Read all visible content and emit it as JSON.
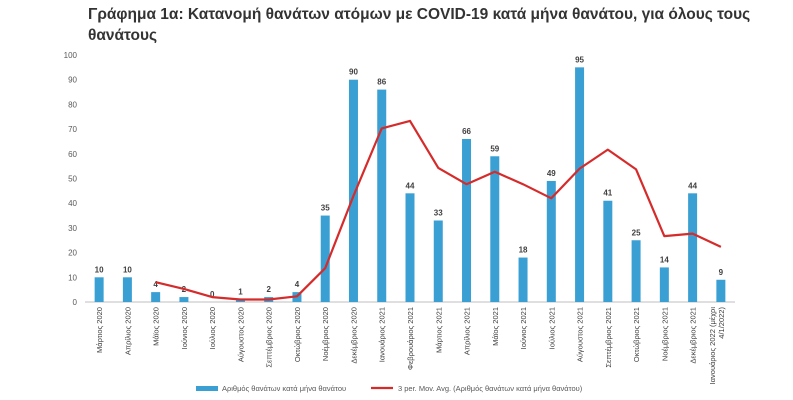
{
  "chart_data": {
    "type": "bar",
    "title": "Γράφημα 1α: Κατανομή θανάτων ατόμων με COVID-19 κατά μήνα θανάτου, για όλους τους θανάτους",
    "categories": [
      "Μάρτιος 2020",
      "Απρίλιος 2020",
      "Μάϊος 2020",
      "Ιούνιος 2020",
      "Ιούλιος 2020",
      "Αύγουστος 2020",
      "Σεπτέμβριος 2020",
      "Οκτώβριος 2020",
      "Νοέμβριος 2020",
      "Δεκέμβριος 2020",
      "Ιανουάριος 2021",
      "Φεβρουάριος 2021",
      "Μάρτιος 2021",
      "Απρίλιος 2021",
      "Μάϊος 2021",
      "Ιούνιος 2021",
      "Ιούλιος 2021",
      "Αύγουστος 2021",
      "Σεπτέμβριος 2021",
      "Οκτώβριος 2021",
      "Νοέμβριος 2021",
      "Δεκέμβριος 2021",
      "Ιανουάριος 2022 (μέχρι 4/1/2022)"
    ],
    "series": [
      {
        "name": "Αριθμός θανάτων κατά μήνα θανάτου",
        "type": "bar",
        "color": "#3aa0d4",
        "values": [
          10,
          10,
          4,
          2,
          0,
          1,
          2,
          4,
          35,
          90,
          86,
          44,
          33,
          66,
          59,
          18,
          49,
          95,
          41,
          25,
          14,
          44,
          9
        ]
      },
      {
        "name": "3 per. Mov. Avg. (Αριθμός θανάτων κατά μήνα θανάτου)",
        "type": "line",
        "color": "#d62b2b",
        "values": [
          null,
          null,
          8,
          5.3,
          2,
          1,
          1,
          2.3,
          13.7,
          43,
          70.3,
          73.3,
          54.3,
          47.7,
          52.7,
          47.7,
          42,
          54,
          61.7,
          53.7,
          26.7,
          27.7,
          22.3
        ]
      }
    ],
    "yticks": [
      "0",
      "10",
      "20",
      "30",
      "40",
      "50",
      "60",
      "70",
      "80",
      "90",
      "100"
    ],
    "ylim": [
      0,
      100
    ],
    "grid": false,
    "legend": "bottom"
  }
}
